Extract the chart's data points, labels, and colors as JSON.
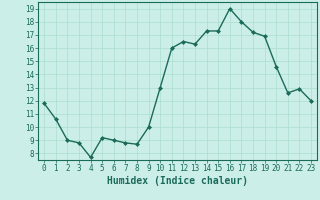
{
  "x": [
    0,
    1,
    2,
    3,
    4,
    5,
    6,
    7,
    8,
    9,
    10,
    11,
    12,
    13,
    14,
    15,
    16,
    17,
    18,
    19,
    20,
    21,
    22,
    23
  ],
  "y": [
    11.8,
    10.6,
    9.0,
    8.8,
    7.7,
    9.2,
    9.0,
    8.8,
    8.7,
    10.0,
    13.0,
    16.0,
    16.5,
    16.3,
    17.3,
    17.3,
    19.0,
    18.0,
    17.2,
    16.9,
    14.6,
    12.6,
    12.9,
    12.0
  ],
  "line_color": "#1a6b5a",
  "marker": "D",
  "markersize": 2,
  "linewidth": 1.0,
  "bg_color": "#cceee8",
  "grid_color": "#aaddcc",
  "xlabel": "Humidex (Indice chaleur)",
  "xlabel_fontsize": 7,
  "xlim": [
    -0.5,
    23.5
  ],
  "ylim": [
    7.5,
    19.5
  ],
  "yticks": [
    8,
    9,
    10,
    11,
    12,
    13,
    14,
    15,
    16,
    17,
    18,
    19
  ],
  "xticks": [
    0,
    1,
    2,
    3,
    4,
    5,
    6,
    7,
    8,
    9,
    10,
    11,
    12,
    13,
    14,
    15,
    16,
    17,
    18,
    19,
    20,
    21,
    22,
    23
  ],
  "tick_labelsize": 5.5,
  "axis_color": "#1a6b5a"
}
